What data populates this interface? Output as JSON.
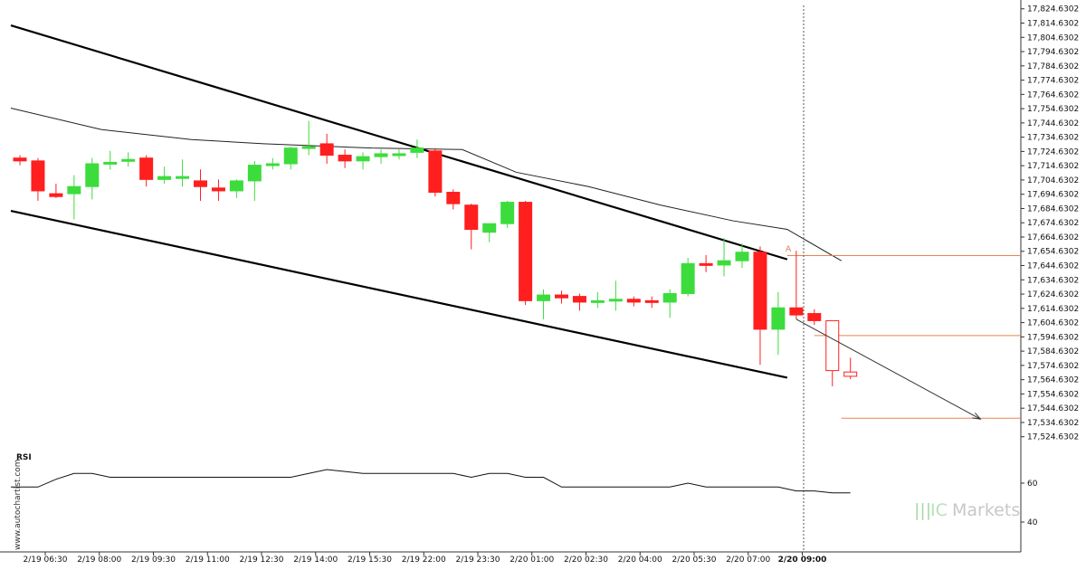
{
  "watermark": "www.autochartist.com",
  "brand": {
    "mark": "|||",
    "ic": "IC",
    "name": "Markets"
  },
  "rsi_title": "RSI",
  "pattern_label": "A",
  "chart_data": [
    {
      "type": "candlestick",
      "title": "",
      "ylim": [
        17520.0,
        17827.0
      ],
      "y_ticks": [
        "17,824.6302",
        "17,814.6302",
        "17,804.6302",
        "17,794.6302",
        "17,784.6302",
        "17,774.6302",
        "17,764.6302",
        "17,754.6302",
        "17,744.6302",
        "17,734.6302",
        "17,724.6302",
        "17,714.6302",
        "17,704.6302",
        "17,694.6302",
        "17,684.6302",
        "17,674.6302",
        "17,664.6302",
        "17,654.6302",
        "17,644.6302",
        "17,634.6302",
        "17,624.6302",
        "17,614.6302",
        "17,604.6302",
        "17,594.6302",
        "17,584.6302",
        "17,574.6302",
        "17,564.6302",
        "17,554.6302",
        "17,544.6302",
        "17,534.6302",
        "17,524.6302"
      ],
      "x_labels": [
        "2/19 06:30",
        "2/19 08:00",
        "2/19 09:30",
        "2/19 11:00",
        "2/19 12:30",
        "2/19 14:00",
        "2/19 15:30",
        "2/19 22:00",
        "2/19 23:30",
        "2/20 01:00",
        "2/20 02:30",
        "2/20 04:00",
        "2/20 05:30",
        "2/20 07:00",
        "2/20 09:00"
      ],
      "x_label_bold_index": 14,
      "colors": {
        "up": "#3ddc3d",
        "down": "#ff1f1f",
        "trend": "#000000",
        "projection": "#333333",
        "level": "#e8824f",
        "ma": "#222222",
        "cursor": "#555555"
      },
      "candles": [
        {
          "o": 17720,
          "h": 17722,
          "l": 17715,
          "c": 17718
        },
        {
          "o": 17718,
          "h": 17720,
          "l": 17690,
          "c": 17697
        },
        {
          "o": 17695,
          "h": 17702,
          "l": 17692,
          "c": 17693
        },
        {
          "o": 17695,
          "h": 17708,
          "l": 17677,
          "c": 17700
        },
        {
          "o": 17700,
          "h": 17720,
          "l": 17691,
          "c": 17716
        },
        {
          "o": 17716,
          "h": 17725,
          "l": 17712,
          "c": 17717
        },
        {
          "o": 17718,
          "h": 17724,
          "l": 17714,
          "c": 17719
        },
        {
          "o": 17720,
          "h": 17722,
          "l": 17700,
          "c": 17705
        },
        {
          "o": 17705,
          "h": 17714,
          "l": 17702,
          "c": 17707
        },
        {
          "o": 17706,
          "h": 17719,
          "l": 17700,
          "c": 17707
        },
        {
          "o": 17704,
          "h": 17712,
          "l": 17690,
          "c": 17700
        },
        {
          "o": 17699,
          "h": 17705,
          "l": 17690,
          "c": 17697
        },
        {
          "o": 17697,
          "h": 17705,
          "l": 17692,
          "c": 17704
        },
        {
          "o": 17704,
          "h": 17718,
          "l": 17690,
          "c": 17715
        },
        {
          "o": 17715,
          "h": 17720,
          "l": 17712,
          "c": 17716
        },
        {
          "o": 17716,
          "h": 17728,
          "l": 17712,
          "c": 17727
        },
        {
          "o": 17727,
          "h": 17746,
          "l": 17722,
          "c": 17728
        },
        {
          "o": 17730,
          "h": 17737,
          "l": 17716,
          "c": 17722
        },
        {
          "o": 17722,
          "h": 17726,
          "l": 17713,
          "c": 17718
        },
        {
          "o": 17718,
          "h": 17724,
          "l": 17712,
          "c": 17721
        },
        {
          "o": 17721,
          "h": 17726,
          "l": 17716,
          "c": 17723
        },
        {
          "o": 17723,
          "h": 17726,
          "l": 17719,
          "c": 17723
        },
        {
          "o": 17724,
          "h": 17733,
          "l": 17720,
          "c": 17727
        },
        {
          "o": 17725,
          "h": 17727,
          "l": 17693,
          "c": 17696
        },
        {
          "o": 17696,
          "h": 17698,
          "l": 17684,
          "c": 17688
        },
        {
          "o": 17687,
          "h": 17688,
          "l": 17656,
          "c": 17670
        },
        {
          "o": 17668,
          "h": 17674,
          "l": 17661,
          "c": 17674
        },
        {
          "o": 17674,
          "h": 17690,
          "l": 17671,
          "c": 17689
        },
        {
          "o": 17689,
          "h": 17690,
          "l": 17617,
          "c": 17620
        },
        {
          "o": 17620,
          "h": 17628,
          "l": 17607,
          "c": 17624
        },
        {
          "o": 17624,
          "h": 17627,
          "l": 17618,
          "c": 17622
        },
        {
          "o": 17623,
          "h": 17625,
          "l": 17613,
          "c": 17619
        },
        {
          "o": 17620,
          "h": 17626,
          "l": 17615,
          "c": 17620
        },
        {
          "o": 17620,
          "h": 17634,
          "l": 17613,
          "c": 17621
        },
        {
          "o": 17621,
          "h": 17623,
          "l": 17616,
          "c": 17619
        },
        {
          "o": 17620,
          "h": 17623,
          "l": 17615,
          "c": 17619
        },
        {
          "o": 17619,
          "h": 17628,
          "l": 17608,
          "c": 17625
        },
        {
          "o": 17625,
          "h": 17650,
          "l": 17623,
          "c": 17646
        },
        {
          "o": 17646,
          "h": 17652,
          "l": 17640,
          "c": 17645
        },
        {
          "o": 17645,
          "h": 17664,
          "l": 17637,
          "c": 17648
        },
        {
          "o": 17648,
          "h": 17660,
          "l": 17643,
          "c": 17654
        },
        {
          "o": 17654,
          "h": 17658,
          "l": 17575,
          "c": 17600
        },
        {
          "o": 17600,
          "h": 17626,
          "l": 17582,
          "c": 17615
        },
        {
          "o": 17615,
          "h": 17655,
          "l": 17607,
          "c": 17610
        },
        {
          "o": 17611,
          "h": 17614,
          "l": 17603,
          "c": 17606
        },
        {
          "o": 17606,
          "h": 17606,
          "l": 17560,
          "c": 17571
        },
        {
          "o": 17570,
          "h": 17580,
          "l": 17565,
          "c": 17567
        }
      ],
      "hollow_last_candles": 2,
      "moving_average": [
        [
          0,
          17755
        ],
        [
          5,
          17740
        ],
        [
          10,
          17733
        ],
        [
          14,
          17730
        ],
        [
          20,
          17727
        ],
        [
          25,
          17726
        ],
        [
          28,
          17710
        ],
        [
          32,
          17700
        ],
        [
          36,
          17687
        ],
        [
          40,
          17676
        ],
        [
          43,
          17670
        ],
        [
          46,
          17648
        ]
      ],
      "channel_upper": [
        [
          0,
          17813
        ],
        [
          43,
          17649
        ]
      ],
      "channel_lower": [
        [
          0,
          17683
        ],
        [
          43,
          17566
        ]
      ],
      "projection": [
        [
          43,
          17607
        ],
        [
          53,
          17537
        ]
      ],
      "levels": [
        {
          "from": 43,
          "to": 56,
          "value": 17651.6
        },
        {
          "from": 44.5,
          "to": 56,
          "value": 17595.6
        },
        {
          "from": 46,
          "to": 56,
          "value": 17537.6
        }
      ]
    },
    {
      "type": "line",
      "title": "RSI",
      "ylim": [
        36,
        72
      ],
      "y_ticks": [
        60,
        40
      ],
      "values": [
        58,
        58,
        62,
        65,
        65,
        63,
        63,
        63,
        63,
        63,
        63,
        63,
        63,
        63,
        63,
        63,
        65,
        67,
        66,
        65,
        65,
        65,
        65,
        65,
        65,
        63,
        65,
        65,
        63,
        63,
        58,
        58,
        58,
        58,
        58,
        58,
        58,
        60,
        58,
        58,
        58,
        58,
        58,
        56,
        56,
        55,
        55
      ]
    }
  ]
}
